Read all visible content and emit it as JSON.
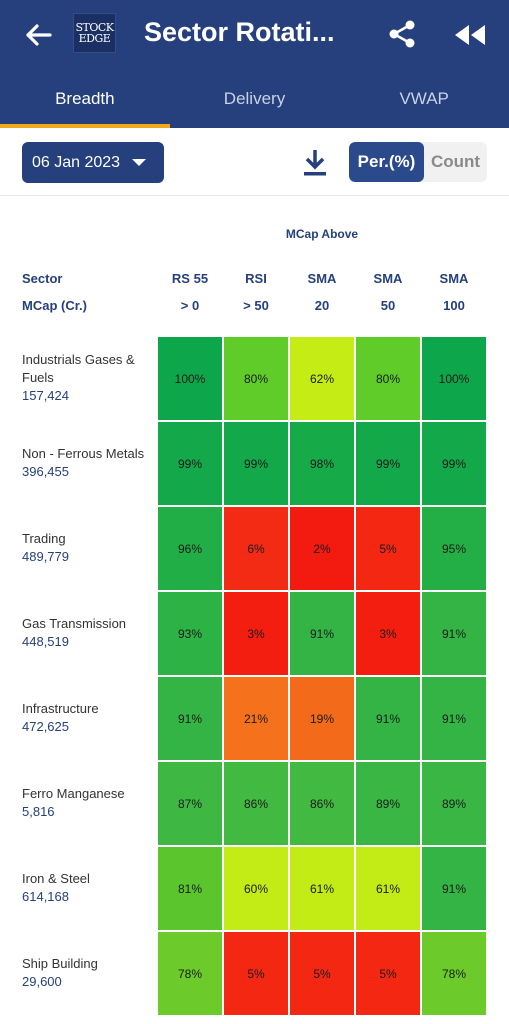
{
  "header": {
    "title": "Sector Rotati...",
    "logo_line1": "STOCK",
    "logo_line2": "EDGE"
  },
  "tabs": [
    {
      "label": "Breadth",
      "active": true
    },
    {
      "label": "Delivery",
      "active": false
    },
    {
      "label": "VWAP",
      "active": false
    }
  ],
  "toolbar": {
    "date": "06 Jan 2023",
    "toggle_on": "Per.(%)",
    "toggle_off": "Count"
  },
  "table": {
    "group_header": "MCap Above",
    "sector_header": "Sector",
    "mcap_header": "MCap (Cr.)",
    "columns": [
      {
        "top": "RS 55",
        "bottom": "> 0"
      },
      {
        "top": "RSI",
        "bottom": "> 50"
      },
      {
        "top": "SMA",
        "bottom": "20"
      },
      {
        "top": "SMA",
        "bottom": "50"
      },
      {
        "top": "SMA",
        "bottom": "100"
      }
    ],
    "rows": [
      {
        "name": "Industrials Gases & Fuels",
        "mcap": "157,424",
        "values": [
          "100%",
          "80%",
          "62%",
          "80%",
          "100%"
        ],
        "colors": [
          "#0ea64a",
          "#5fcc2a",
          "#c5ec14",
          "#5fcc2a",
          "#0ea64a"
        ]
      },
      {
        "name": "Non - Ferrous Metals",
        "mcap": "396,455",
        "values": [
          "99%",
          "99%",
          "98%",
          "99%",
          "99%"
        ],
        "colors": [
          "#13a84a",
          "#13a84a",
          "#16aa49",
          "#13a84a",
          "#13a84a"
        ]
      },
      {
        "name": "Trading",
        "mcap": "489,779",
        "values": [
          "96%",
          "6%",
          "2%",
          "5%",
          "95%"
        ],
        "colors": [
          "#22ae47",
          "#f42b14",
          "#f31b10",
          "#f42812",
          "#24af46"
        ]
      },
      {
        "name": "Gas Transmission",
        "mcap": "448,519",
        "values": [
          "93%",
          "3%",
          "91%",
          "3%",
          "91%"
        ],
        "colors": [
          "#2db245",
          "#f31e10",
          "#33b444",
          "#f31e10",
          "#33b444"
        ]
      },
      {
        "name": "Infrastructure",
        "mcap": "472,625",
        "values": [
          "91%",
          "21%",
          "19%",
          "91%",
          "91%"
        ],
        "colors": [
          "#33b444",
          "#f5711c",
          "#f46a1b",
          "#33b444",
          "#33b444"
        ]
      },
      {
        "name": "Ferro Manganese",
        "mcap": "5,816",
        "values": [
          "87%",
          "86%",
          "86%",
          "89%",
          "89%"
        ],
        "colors": [
          "#3eb842",
          "#42b941",
          "#42b941",
          "#39b643",
          "#39b643"
        ]
      },
      {
        "name": "Iron & Steel",
        "mcap": "614,168",
        "values": [
          "81%",
          "60%",
          "61%",
          "61%",
          "91%"
        ],
        "colors": [
          "#5bc52e",
          "#c3eb16",
          "#c3eb16",
          "#c3eb16",
          "#33b444"
        ]
      },
      {
        "name": "Ship Building",
        "mcap": "29,600",
        "values": [
          "78%",
          "5%",
          "5%",
          "5%",
          "78%"
        ],
        "colors": [
          "#6ccb2b",
          "#f42812",
          "#f42812",
          "#f42812",
          "#6ccb2b"
        ]
      }
    ]
  }
}
